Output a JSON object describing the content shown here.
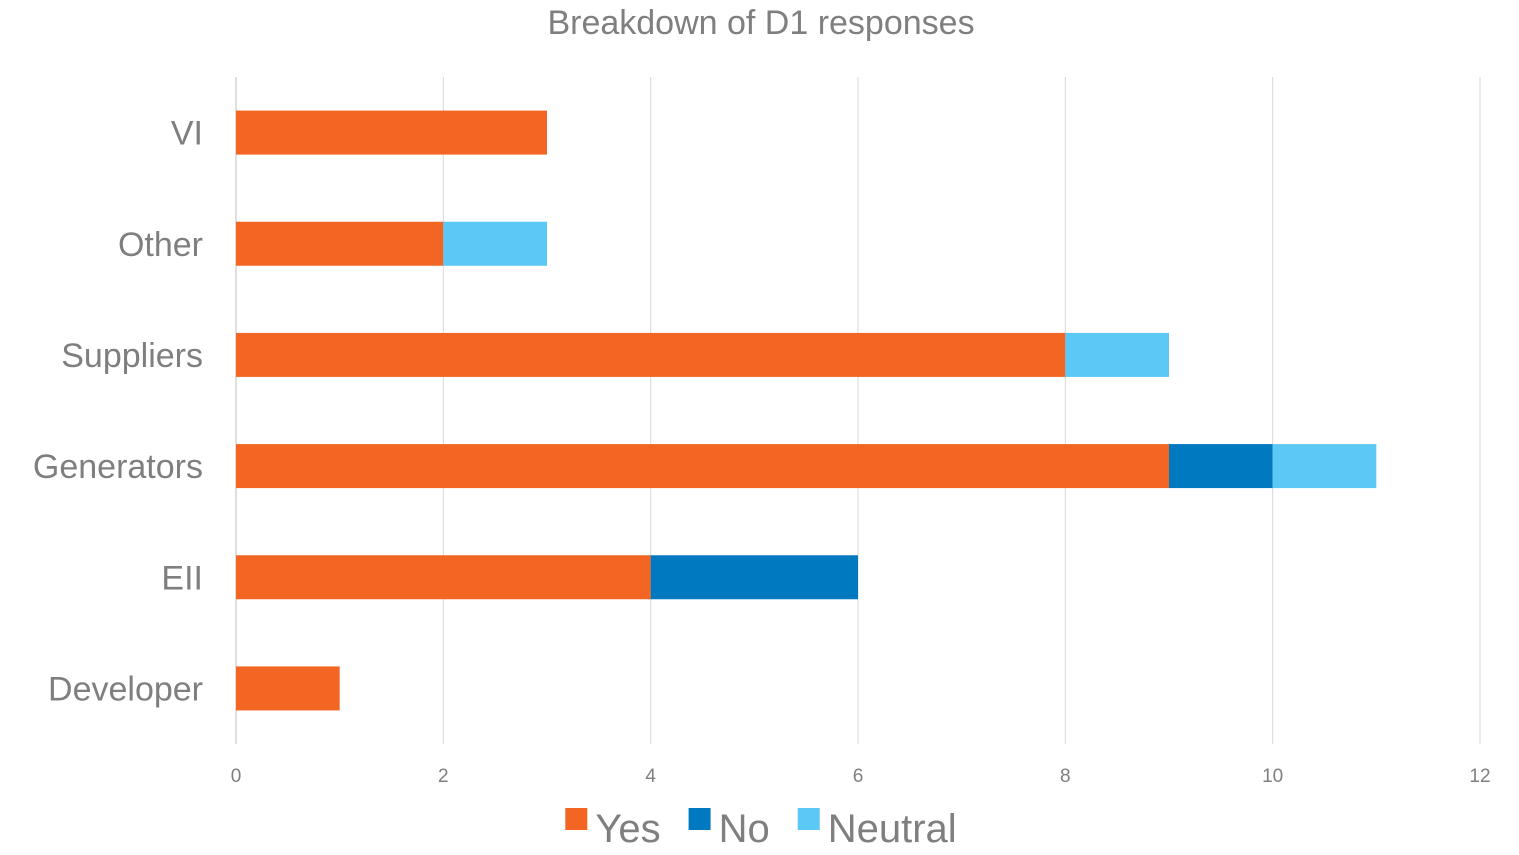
{
  "chart_data": {
    "type": "bar",
    "orientation": "horizontal",
    "stacked": true,
    "title": "Breakdown of D1 responses",
    "categories": [
      "VI",
      "Other",
      "Suppliers",
      "Generators",
      "EII",
      "Developer"
    ],
    "series": [
      {
        "name": "Yes",
        "color": "#F26522",
        "values": [
          3,
          2,
          8,
          9,
          4,
          1
        ]
      },
      {
        "name": "No",
        "color": "#0079C1",
        "values": [
          0,
          0,
          0,
          1,
          2,
          0
        ]
      },
      {
        "name": "Neutral",
        "color": "#5BC8F5",
        "values": [
          0,
          1,
          1,
          1,
          0,
          0
        ]
      }
    ],
    "xlim": [
      0,
      12
    ],
    "xticks": [
      "0",
      "2",
      "4",
      "6",
      "8",
      "10",
      "12"
    ],
    "grid": true,
    "legend_position": "bottom"
  }
}
